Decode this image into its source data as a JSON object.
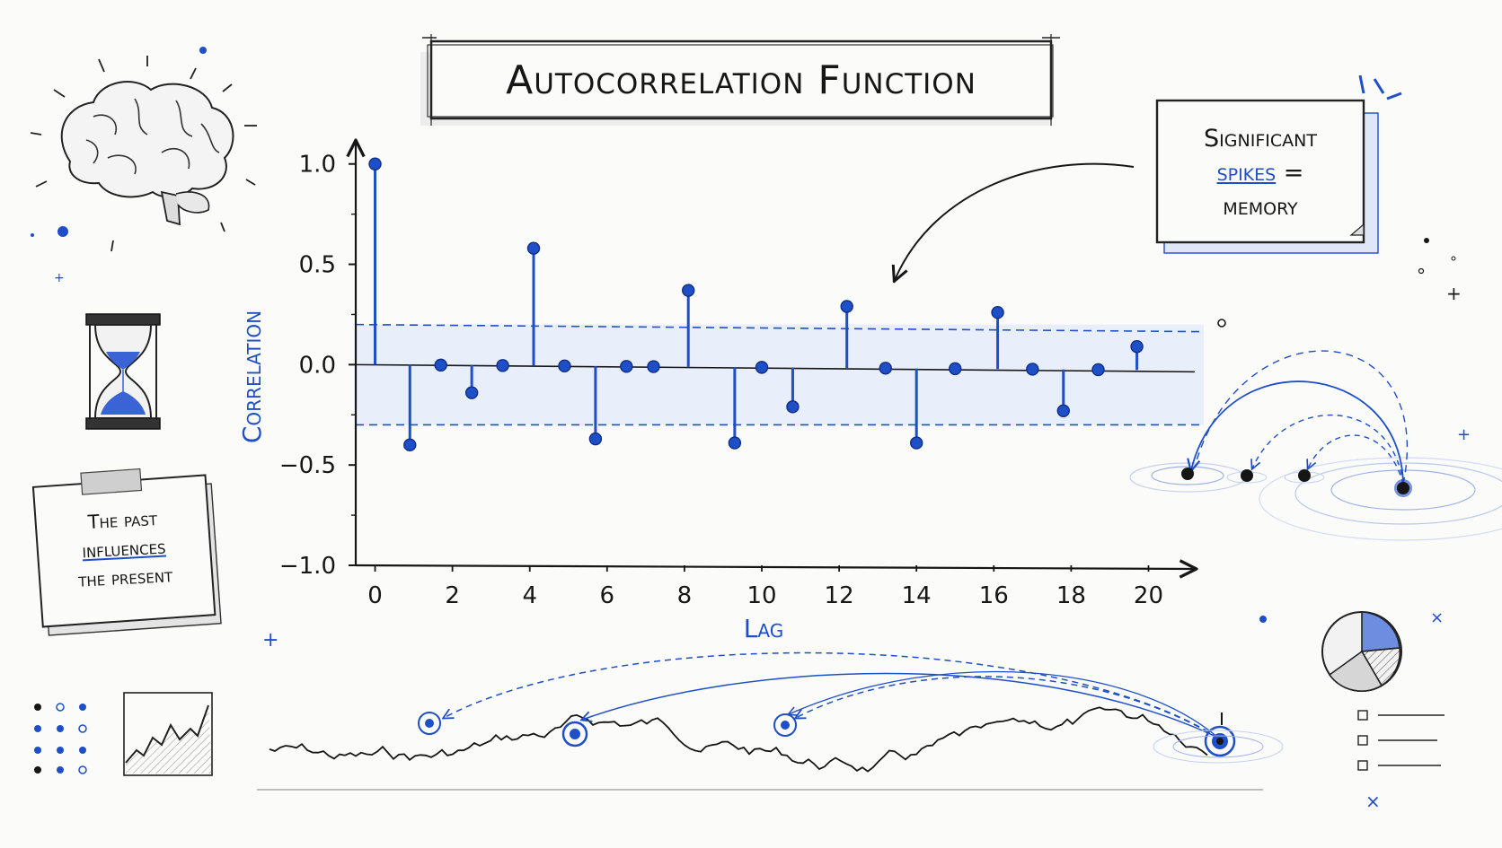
{
  "title": "Autocorrelation Function",
  "note_right": {
    "line1": "Significant",
    "line2_highlight": "spikes",
    "line2_rest": " =",
    "line3": "memory"
  },
  "note_left": {
    "line1": "The past",
    "line2": "influences",
    "line3": "the present"
  },
  "colors": {
    "accent": "#1f4fc7",
    "ink": "#161616",
    "band": "#e9eefb"
  },
  "icons": [
    "brain-icon",
    "hourglass-icon",
    "pie-chart-icon",
    "checklist-icon",
    "mini-line-chart-icon"
  ],
  "chart_data": {
    "type": "stem",
    "xlabel": "Lag",
    "ylabel": "Correlation",
    "xlim": [
      -0.5,
      20.5
    ],
    "ylim": [
      -1.0,
      1.2
    ],
    "x_ticks": [
      0,
      2,
      4,
      6,
      8,
      10,
      12,
      14,
      16,
      18,
      20
    ],
    "y_ticks": [
      {
        "value": 1.0,
        "label": "1.0"
      },
      {
        "value": 0.5,
        "label": "0.5"
      },
      {
        "value": 0.0,
        "label": "0.0"
      },
      {
        "value": -0.5,
        "label": "−0.5"
      },
      {
        "value": -1.0,
        "label": "−1.0"
      }
    ],
    "confidence_band": [
      -0.3,
      0.2
    ],
    "series": [
      {
        "x": [
          0,
          0.9,
          1.7,
          2.5,
          3.3,
          4.1,
          4.9,
          5.7,
          6.5,
          7.2,
          8.1,
          9.3,
          10.0,
          10.8,
          12.2,
          13.2,
          14.0,
          15.0,
          16.1,
          17.0,
          17.8,
          18.7,
          19.7
        ],
        "y": [
          1.0,
          -0.4,
          0.0,
          -0.14,
          0.0,
          0.58,
          0.0,
          -0.37,
          -0.01,
          -0.01,
          0.37,
          -0.39,
          0.0,
          -0.21,
          0.29,
          -0.02,
          -0.39,
          -0.03,
          0.26,
          -0.03,
          -0.23,
          -0.03,
          0.09
        ]
      }
    ]
  }
}
